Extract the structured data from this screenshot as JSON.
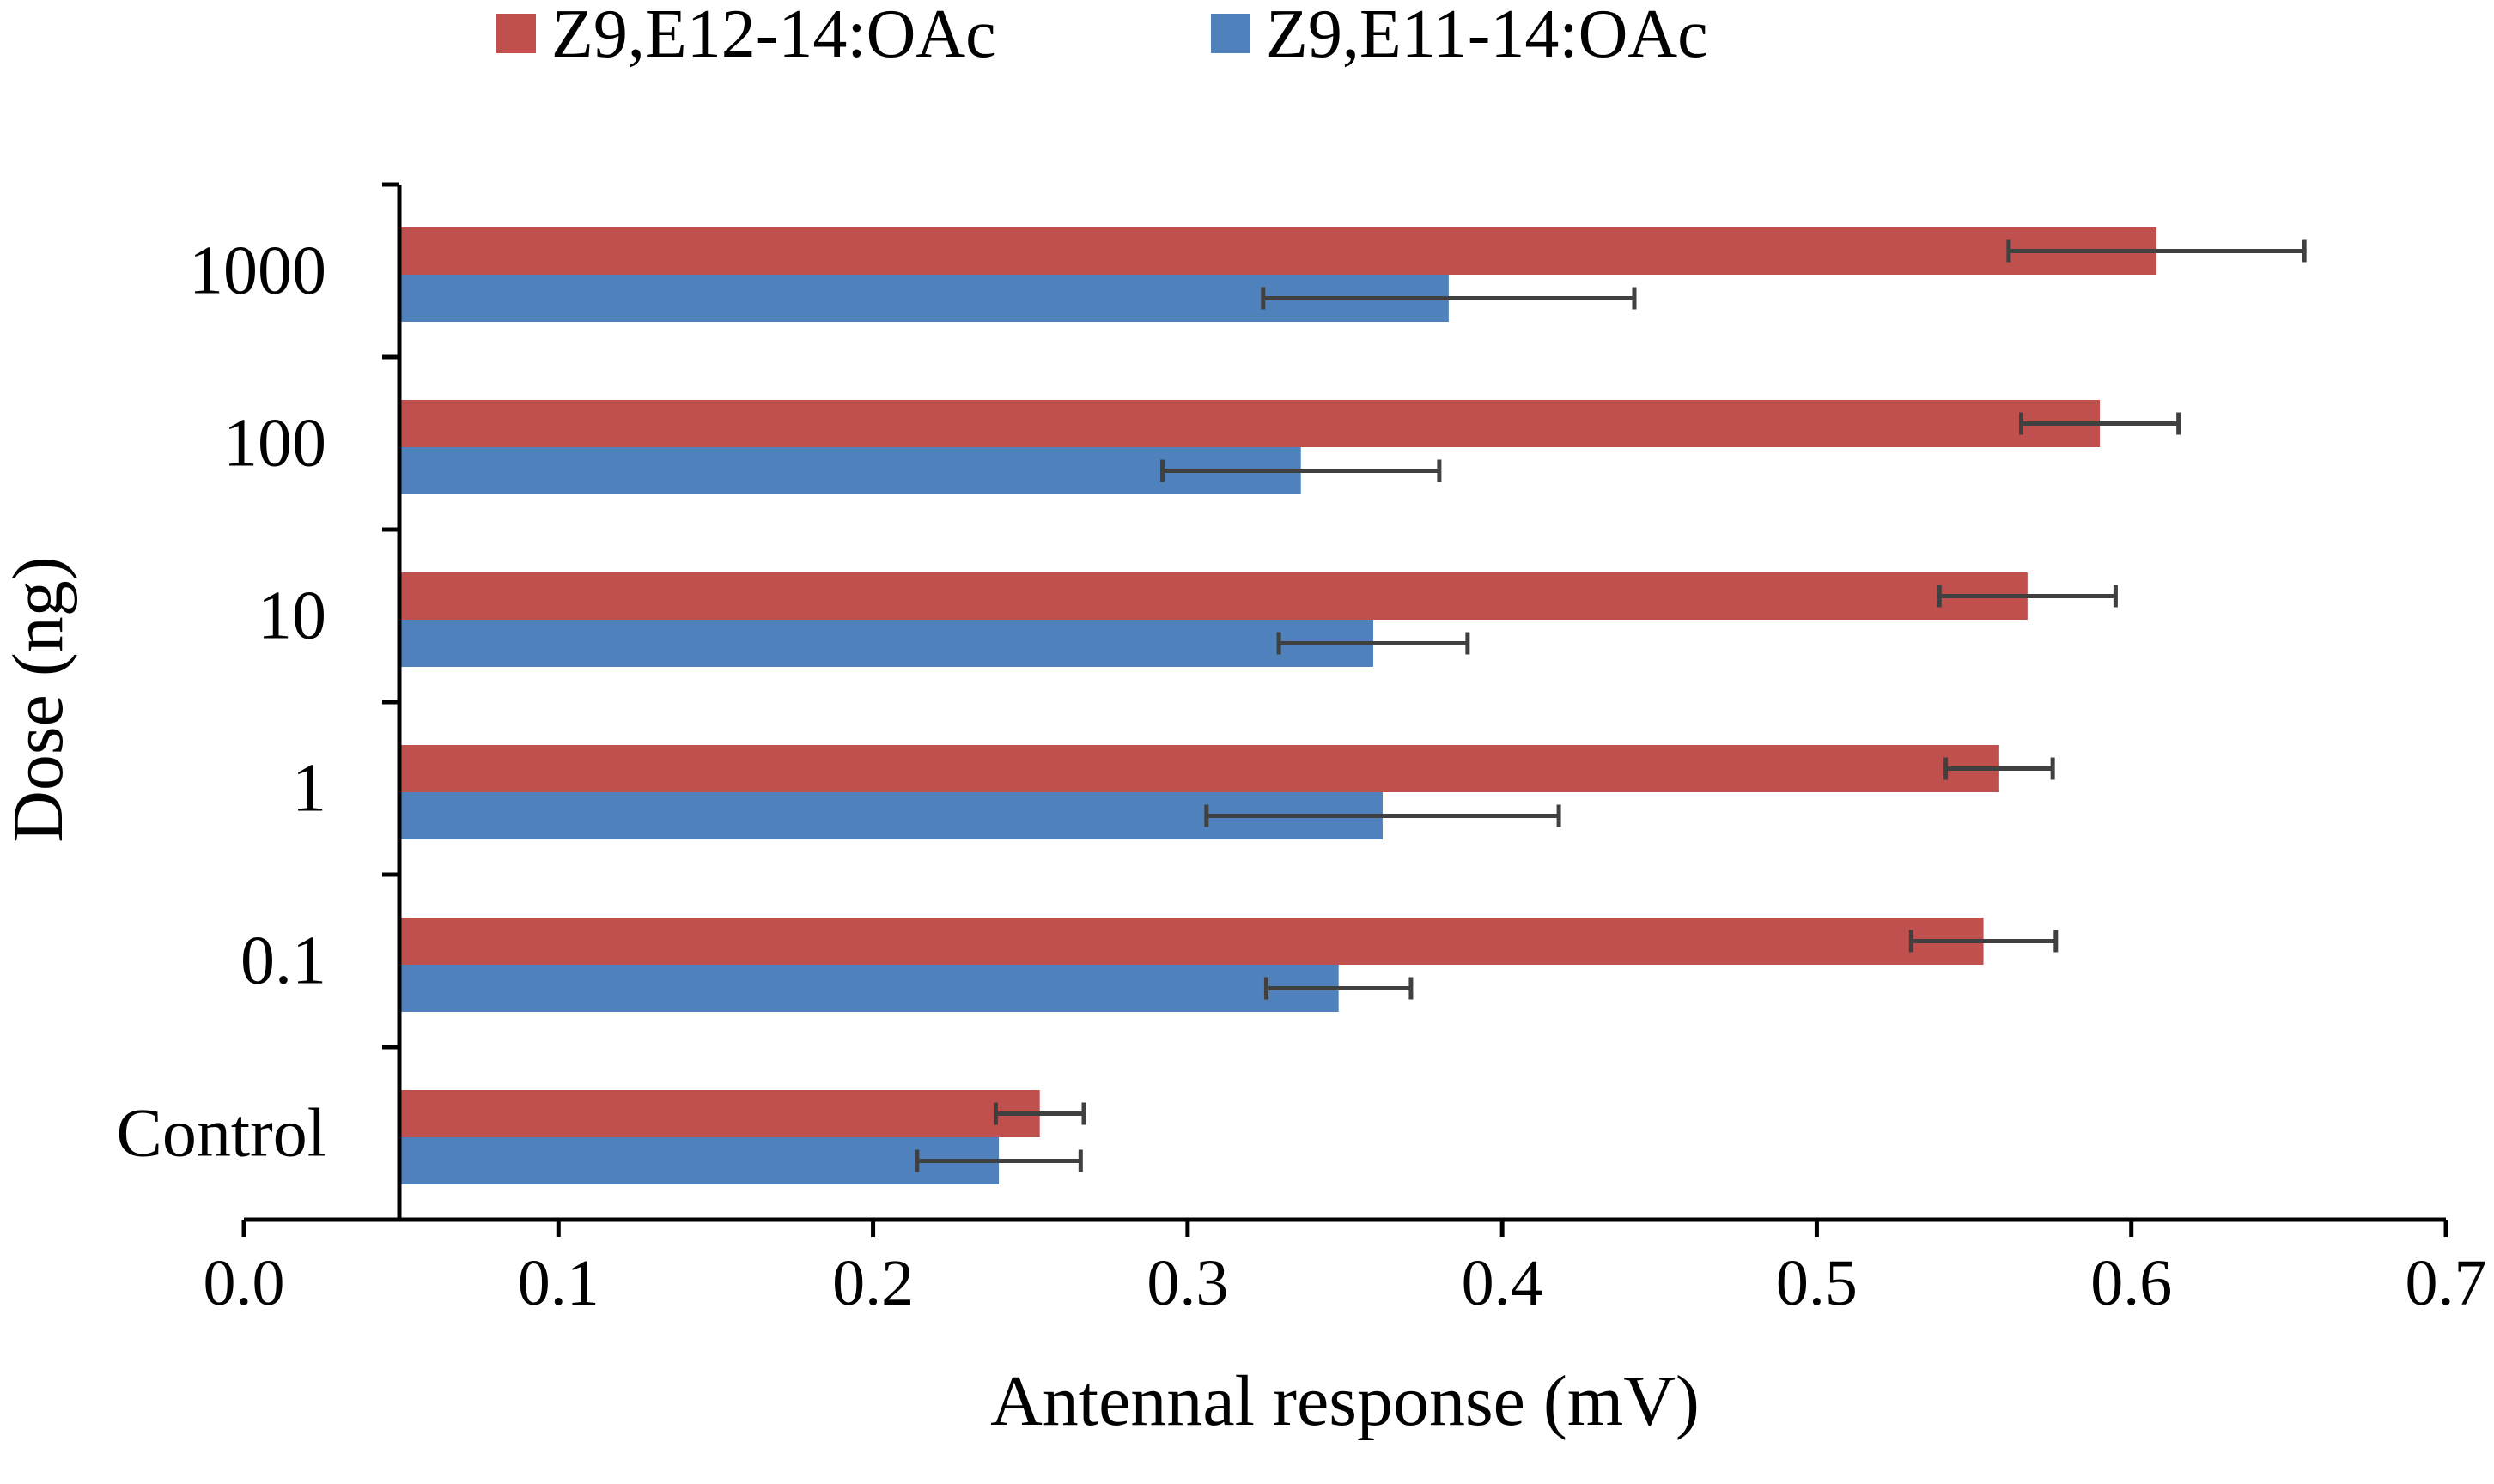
{
  "chart_data": {
    "type": "bar",
    "orientation": "horizontal",
    "categories": [
      "Control",
      "0.1",
      "1",
      "10",
      "100",
      "1000"
    ],
    "series": [
      {
        "name": "Z9,E12-14:OAc",
        "color": "#c0504d",
        "values": [
          0.253,
          0.553,
          0.558,
          0.567,
          0.59,
          0.608
        ],
        "errors": [
          0.014,
          0.023,
          0.017,
          0.028,
          0.025,
          0.047
        ]
      },
      {
        "name": "Z9,E11-14:OAc",
        "color": "#4f81bd",
        "values": [
          0.24,
          0.348,
          0.362,
          0.359,
          0.336,
          0.383
        ],
        "errors": [
          0.026,
          0.023,
          0.056,
          0.03,
          0.044,
          0.059
        ]
      }
    ],
    "xlabel": "Antennal response (mV)",
    "ylabel": "Dose (ng)",
    "xlim": [
      0.0,
      0.7
    ],
    "xticks": [
      "0.0",
      "0.1",
      "0.2",
      "0.3",
      "0.4",
      "0.5",
      "0.6",
      "0.7"
    ],
    "error_bar_color": "#404040",
    "grid": false,
    "legend_position": "top"
  }
}
